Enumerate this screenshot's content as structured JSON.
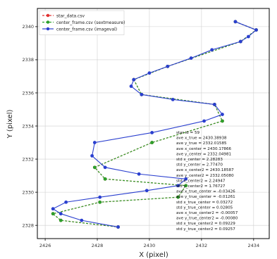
{
  "chart_data": {
    "type": "line",
    "xlabel": "X (pixel)",
    "ylabel": "Y (pixel)",
    "xlim": [
      2425.7,
      2434.6
    ],
    "ylim": [
      2327.2,
      2341.1
    ],
    "xticks": [
      2426,
      2428,
      2430,
      2432,
      2434
    ],
    "yticks": [
      2328,
      2330,
      2332,
      2334,
      2336,
      2338,
      2340
    ],
    "grid": true,
    "legend_position": "top-left",
    "series": [
      {
        "name": "star_data.csv",
        "color": "#e03030",
        "marker": "circle",
        "linestyle": "dashed",
        "x": [
          2433.3,
          2434.1,
          2433.5,
          2430.7,
          2429.4,
          2429.7,
          2432.5,
          2432.8,
          2430.1,
          2427.9,
          2428.3,
          2431.4,
          2431.1,
          2428.1,
          2426.3,
          2426.6,
          2428.8
        ],
        "y": [
          2340.3,
          2339.8,
          2339.1,
          2337.6,
          2336.8,
          2335.9,
          2335.3,
          2334.3,
          2333.0,
          2331.5,
          2330.8,
          2330.4,
          2329.7,
          2329.4,
          2328.7,
          2328.3,
          2327.9
        ]
      },
      {
        "name": "center_frame.csv (sextmeasure)",
        "color": "#2ca02c",
        "marker": "circle",
        "linestyle": "dashed",
        "x": [
          2433.3,
          2434.1,
          2433.5,
          2430.7,
          2429.4,
          2429.7,
          2432.5,
          2432.8,
          2430.1,
          2427.9,
          2428.3,
          2431.4,
          2431.1,
          2428.1,
          2426.3,
          2426.6,
          2428.8
        ],
        "y": [
          2340.3,
          2339.8,
          2339.1,
          2337.6,
          2336.8,
          2335.9,
          2335.3,
          2334.3,
          2333.0,
          2331.5,
          2330.8,
          2330.4,
          2329.7,
          2329.4,
          2328.7,
          2328.3,
          2327.9
        ]
      },
      {
        "name": "center_frame.csv (imageval)",
        "color": "#2a3fcf",
        "marker": "circle",
        "linestyle": "solid",
        "x": [
          2433.3,
          2434.1,
          2433.8,
          2433.5,
          2432.4,
          2431.6,
          2430.7,
          2430.0,
          2429.4,
          2429.3,
          2429.7,
          2430.9,
          2432.5,
          2432.8,
          2432.1,
          2430.1,
          2427.9,
          2427.8,
          2428.3,
          2429.6,
          2431.4,
          2431.1,
          2429.9,
          2428.1,
          2426.8,
          2426.3,
          2426.6,
          2427.4,
          2428.8
        ],
        "y": [
          2340.3,
          2339.8,
          2339.4,
          2339.1,
          2338.6,
          2338.1,
          2337.6,
          2337.2,
          2336.8,
          2336.4,
          2335.9,
          2335.6,
          2335.3,
          2334.7,
          2334.3,
          2333.6,
          2333.0,
          2332.2,
          2331.5,
          2331.1,
          2330.8,
          2330.4,
          2330.1,
          2329.7,
          2329.4,
          2329.0,
          2328.7,
          2328.3,
          2327.9
        ]
      }
    ],
    "annotation": [
      "star id = 59",
      "ave x_true = 2430.38938",
      "ave y_true = 2332.01585",
      "ave x_center = 2430.17866",
      "ave y_center = 2332.04981",
      "std x_center = 2.28283",
      "std y_center = 2.77470",
      "ave x_center2 = 2430.18587",
      "ave y_center2 = 2332.05080",
      "std x_center2 = 2.24947",
      "std y_center2 = 1.76727",
      "ave x_true_center = -0.03426",
      "ave y_true_center = -0.01261",
      "std x_true_center = 0.03272",
      "std y_true_center = 0.02805",
      "ave x_true_center2 = -0.00057",
      "ave y_true_center2 = -0.00080",
      "std x_true_center2 = 0.09229",
      "std y_true_center2 = 0.09257"
    ]
  }
}
